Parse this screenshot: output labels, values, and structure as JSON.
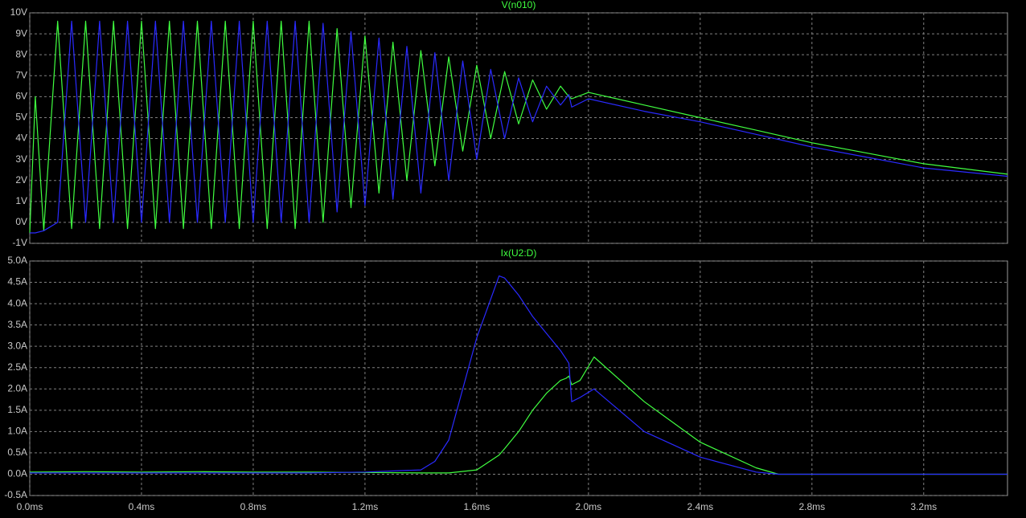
{
  "chart_data": [
    {
      "type": "line",
      "title": "V(n010)",
      "title_color": "#40ff40",
      "grid": true,
      "x": [
        0,
        0.02,
        0.05,
        0.1,
        0.15,
        0.2,
        0.25,
        0.3,
        0.35,
        0.4,
        0.45,
        0.5,
        0.55,
        0.6,
        0.65,
        0.7,
        0.75,
        0.8,
        0.85,
        0.9,
        0.95,
        1.0,
        1.05,
        1.1,
        1.15,
        1.2,
        1.25,
        1.3,
        1.35,
        1.4,
        1.45,
        1.5,
        1.55,
        1.6,
        1.65,
        1.7,
        1.75,
        1.8,
        1.85,
        1.9,
        1.93,
        1.94,
        2.0,
        2.2,
        2.4,
        2.6,
        2.8,
        3.0,
        3.2,
        3.5
      ],
      "series": [
        {
          "color": "#40ff40",
          "values": [
            -0.5,
            6,
            -0.4,
            9.6,
            -0.3,
            9.6,
            -0.3,
            9.6,
            -0.3,
            9.6,
            -0.3,
            9.6,
            -0.3,
            9.6,
            -0.3,
            9.6,
            -0.3,
            9.6,
            -0.3,
            9.6,
            -0.3,
            9.6,
            0.0,
            9.25,
            0.7,
            8.9,
            1.4,
            8.6,
            2.0,
            8.2,
            2.7,
            7.9,
            3.4,
            7.5,
            4.0,
            7.2,
            4.7,
            6.8,
            5.4,
            6.5,
            6.0,
            5.9,
            6.2,
            5.6,
            5.0,
            4.4,
            3.8,
            3.3,
            2.8,
            2.3
          ]
        },
        {
          "color": "#2a2aff",
          "values": [
            -0.5,
            -0.5,
            -0.4,
            0.0,
            9.6,
            0.0,
            9.6,
            0.0,
            9.6,
            0.0,
            9.6,
            0.0,
            9.6,
            0.0,
            9.6,
            0.0,
            9.6,
            0.0,
            9.6,
            0.0,
            9.6,
            0.0,
            9.5,
            0.5,
            9.1,
            0.8,
            8.8,
            1.1,
            8.4,
            1.4,
            8.1,
            2.0,
            7.7,
            3.0,
            7.3,
            4.0,
            6.9,
            4.8,
            6.5,
            5.6,
            6.1,
            5.5,
            5.9,
            5.3,
            4.8,
            4.2,
            3.6,
            3.1,
            2.6,
            2.2
          ]
        }
      ],
      "xlim": [
        0,
        3.5
      ],
      "xticks": [
        0,
        0.4,
        0.8,
        1.2,
        1.6,
        2.0,
        2.4,
        2.8,
        3.2
      ],
      "ylim": [
        -1,
        10
      ],
      "yticks": [
        {
          "value": 10,
          "label": "10V"
        },
        {
          "value": 9,
          "label": "9V"
        },
        {
          "value": 8,
          "label": "8V"
        },
        {
          "value": 7,
          "label": "7V"
        },
        {
          "value": 6,
          "label": "6V"
        },
        {
          "value": 5,
          "label": "5V"
        },
        {
          "value": 4,
          "label": "4V"
        },
        {
          "value": 3,
          "label": "3V"
        },
        {
          "value": 2,
          "label": "2V"
        },
        {
          "value": 1,
          "label": "1V"
        },
        {
          "value": 0,
          "label": "0V"
        },
        {
          "value": -1,
          "label": "-1V"
        }
      ]
    },
    {
      "type": "line",
      "title": "Ix(U2:D)",
      "title_color": "#40ff40",
      "grid": true,
      "x": [
        0,
        0.2,
        0.4,
        0.6,
        0.8,
        1.0,
        1.2,
        1.4,
        1.45,
        1.5,
        1.6,
        1.68,
        1.7,
        1.75,
        1.8,
        1.85,
        1.9,
        1.92,
        1.93,
        1.94,
        1.97,
        2.02,
        2.2,
        2.4,
        2.6,
        2.68,
        2.7,
        3.5
      ],
      "series": [
        {
          "color": "#40ff40",
          "values": [
            0.05,
            0.06,
            0.05,
            0.06,
            0.05,
            0.05,
            0.04,
            0.03,
            0.03,
            0.03,
            0.1,
            0.45,
            0.6,
            1.0,
            1.5,
            1.9,
            2.2,
            2.25,
            2.3,
            2.1,
            2.2,
            2.75,
            1.7,
            0.75,
            0.15,
            0.0,
            0.0,
            0.0
          ]
        },
        {
          "color": "#2a2aff",
          "values": [
            0.03,
            0.03,
            0.03,
            0.03,
            0.03,
            0.03,
            0.05,
            0.1,
            0.3,
            0.8,
            3.2,
            4.65,
            4.6,
            4.2,
            3.7,
            3.3,
            2.9,
            2.7,
            2.6,
            1.7,
            1.8,
            2.0,
            1.0,
            0.4,
            0.05,
            0.0,
            0.0,
            0.0
          ]
        }
      ],
      "xlim": [
        0,
        3.5
      ],
      "xticks": [
        {
          "value": 0,
          "label": "0.0ms"
        },
        {
          "value": 0.4,
          "label": "0.4ms"
        },
        {
          "value": 0.8,
          "label": "0.8ms"
        },
        {
          "value": 1.2,
          "label": "1.2ms"
        },
        {
          "value": 1.6,
          "label": "1.6ms"
        },
        {
          "value": 2.0,
          "label": "2.0ms"
        },
        {
          "value": 2.4,
          "label": "2.4ms"
        },
        {
          "value": 2.8,
          "label": "2.8ms"
        },
        {
          "value": 3.2,
          "label": "3.2ms"
        }
      ],
      "ylim": [
        -0.5,
        5.0
      ],
      "yticks": [
        {
          "value": 5.0,
          "label": "5.0A"
        },
        {
          "value": 4.5,
          "label": "4.5A"
        },
        {
          "value": 4.0,
          "label": "4.0A"
        },
        {
          "value": 3.5,
          "label": "3.5A"
        },
        {
          "value": 3.0,
          "label": "3.0A"
        },
        {
          "value": 2.5,
          "label": "2.5A"
        },
        {
          "value": 2.0,
          "label": "2.0A"
        },
        {
          "value": 1.5,
          "label": "1.5A"
        },
        {
          "value": 1.0,
          "label": "1.0A"
        },
        {
          "value": 0.5,
          "label": "0.5A"
        },
        {
          "value": 0.0,
          "label": "0.0A"
        },
        {
          "value": -0.5,
          "label": "-0.5A"
        }
      ]
    }
  ]
}
